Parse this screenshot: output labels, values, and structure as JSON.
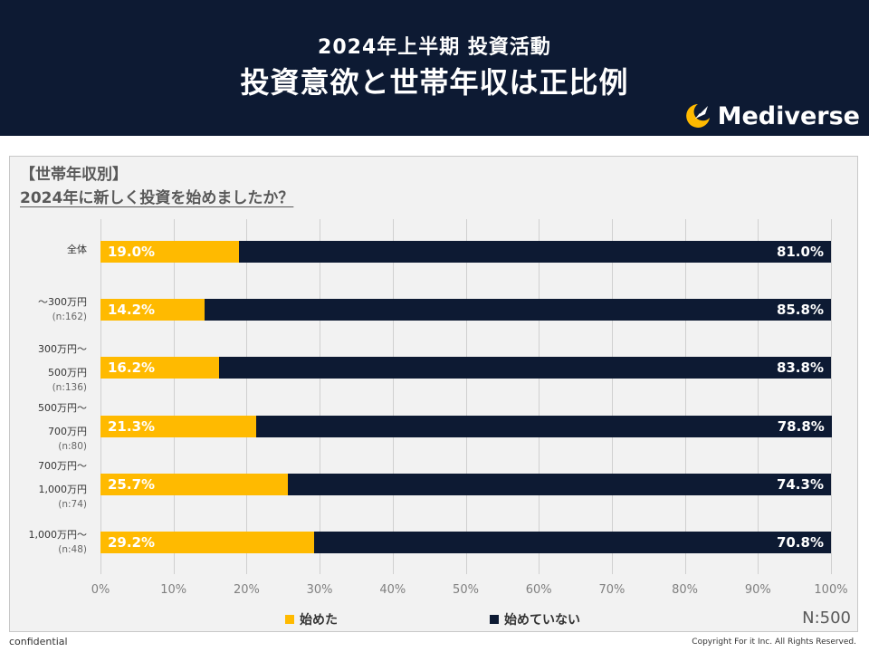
{
  "header": {
    "title_line1": "2024年上半期 投資活動",
    "title_line2": "投資意欲と世帯年収は正比例",
    "brand": "Mediverse"
  },
  "section_label": "【世帯年収別】",
  "question": "2024年に新しく投資を始めましたか？",
  "n_total": "N:500",
  "footer": {
    "confidential": "confidential",
    "copyright": "Copyright For it Inc. All Rights Reserved."
  },
  "colors": {
    "started": "#ffba00",
    "not_started": "#0d1a33",
    "header_bg": "#0d1a33"
  },
  "chart_data": {
    "type": "bar",
    "orientation": "horizontal-stacked-100",
    "categories": [
      {
        "line1": "全体",
        "line2": "",
        "n": ""
      },
      {
        "line1": "～300万円",
        "line2": "",
        "n": "(n:162)"
      },
      {
        "line1": "300万円～",
        "line2": "500万円",
        "n": "(n:136)"
      },
      {
        "line1": "500万円～",
        "line2": "700万円",
        "n": "(n:80)"
      },
      {
        "line1": "700万円～",
        "line2": "1,000万円",
        "n": "(n:74)"
      },
      {
        "line1": "1,000万円～",
        "line2": "",
        "n": "(n:48)"
      }
    ],
    "series": [
      {
        "name": "始めた",
        "values": [
          19.0,
          14.2,
          16.2,
          21.3,
          25.7,
          29.2
        ],
        "labels": [
          "19.0%",
          "14.2%",
          "16.2%",
          "21.3%",
          "25.7%",
          "29.2%"
        ]
      },
      {
        "name": "始めていない",
        "values": [
          81.0,
          85.8,
          83.8,
          78.8,
          74.3,
          70.8
        ],
        "labels": [
          "81.0%",
          "85.8%",
          "83.8%",
          "78.8%",
          "74.3%",
          "70.8%"
        ]
      }
    ],
    "xlim": [
      0,
      100
    ],
    "x_ticks": [
      "0%",
      "10%",
      "20%",
      "30%",
      "40%",
      "50%",
      "60%",
      "70%",
      "80%",
      "90%",
      "100%"
    ],
    "legend_position": "bottom"
  }
}
